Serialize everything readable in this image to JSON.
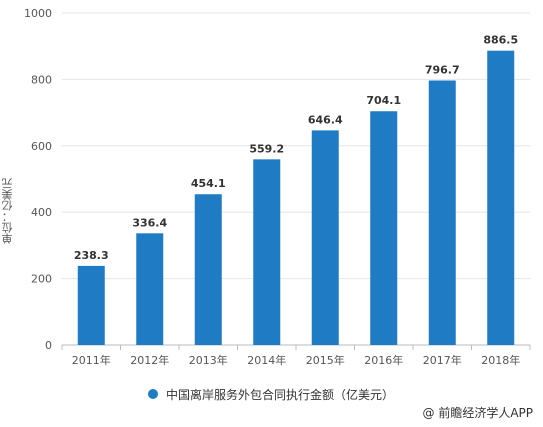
{
  "chart_data": {
    "type": "bar",
    "categories": [
      "2011年",
      "2012年",
      "2013年",
      "2014年",
      "2015年",
      "2016年",
      "2017年",
      "2018年"
    ],
    "values": [
      238.3,
      336.4,
      454.1,
      559.2,
      646.4,
      704.1,
      796.7,
      886.5
    ],
    "value_labels": [
      "238.3",
      "336.4",
      "454.1",
      "559.2",
      "646.4",
      "704.1",
      "796.7",
      "886.5"
    ],
    "ylabel": "单位：亿美元",
    "ylim": [
      0,
      1000
    ],
    "yticks": [
      0,
      200,
      400,
      600,
      800,
      1000
    ],
    "grid": true,
    "legend_position": "bottom",
    "series_name": "中国离岸服务外包合同执行金额（亿美元）",
    "bar_color": "#1f7cc4"
  },
  "credit": "@ 前瞻经济学人APP"
}
